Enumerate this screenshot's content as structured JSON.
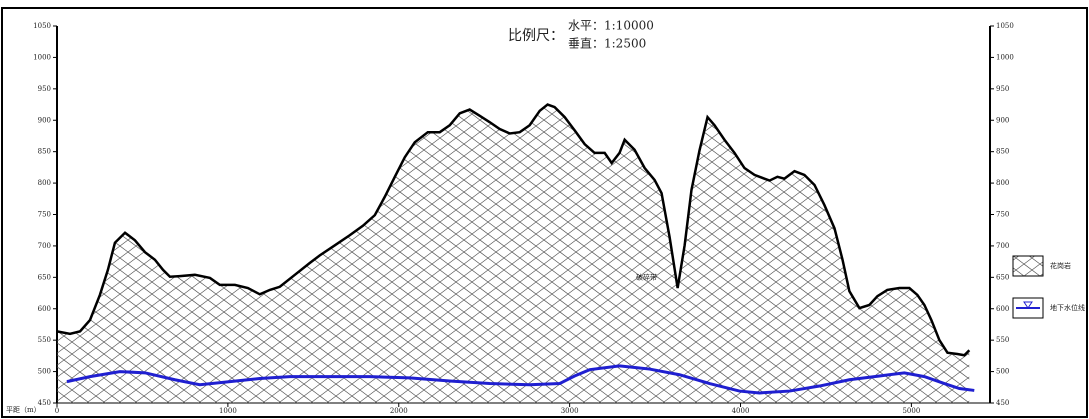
{
  "chart_data": {
    "type": "area",
    "title": "比例尺：",
    "scale_labels": [
      "水平：1:10000",
      "垂直：1:2500"
    ],
    "x_label": "平距（m）",
    "xlim": [
      0,
      5460
    ],
    "ylim": [
      450,
      1050
    ],
    "xticks": [
      0,
      1000,
      2000,
      3000,
      4000,
      5000
    ],
    "yticks": [
      450,
      500,
      550,
      600,
      650,
      700,
      750,
      800,
      850,
      900,
      950,
      1000,
      1050
    ],
    "annotations": [
      {
        "text": "破碎带",
        "x": 3450,
        "y": 650
      }
    ],
    "series": [
      {
        "name": "花岗岩",
        "type": "area",
        "color": "#000000",
        "x": [
          0,
          76,
          135,
          193,
          251,
          298,
          339,
          398,
          456,
          515,
          573,
          620,
          661,
          719,
          807,
          895,
          953,
          1041,
          1117,
          1187,
          1246,
          1304,
          1392,
          1480,
          1538,
          1626,
          1713,
          1790,
          1860,
          1918,
          1977,
          2035,
          2094,
          2170,
          2240,
          2298,
          2357,
          2415,
          2474,
          2532,
          2591,
          2649,
          2708,
          2766,
          2825,
          2871,
          2912,
          2971,
          3029,
          3088,
          3146,
          3205,
          3246,
          3292,
          3322,
          3380,
          3439,
          3497,
          3538,
          3585,
          3632,
          3673,
          3713,
          3760,
          3807,
          3848,
          3906,
          3965,
          4023,
          4082,
          4140,
          4170,
          4216,
          4257,
          4316,
          4374,
          4433,
          4491,
          4550,
          4597,
          4637,
          4696,
          4754,
          4801,
          4859,
          4930,
          4988,
          5035,
          5076,
          5117,
          5164,
          5211,
          5269,
          5310,
          5339
        ],
        "values": [
          564,
          560,
          564,
          582,
          622,
          662,
          705,
          721,
          709,
          690,
          678,
          662,
          651,
          652,
          654,
          649,
          638,
          638,
          633,
          623,
          630,
          635,
          654,
          673,
          685,
          701,
          717,
          732,
          749,
          778,
          810,
          841,
          865,
          881,
          881,
          892,
          911,
          917,
          907,
          897,
          886,
          879,
          881,
          892,
          915,
          925,
          921,
          905,
          884,
          862,
          848,
          848,
          832,
          848,
          869,
          853,
          824,
          805,
          784,
          714,
          633,
          701,
          789,
          852,
          905,
          892,
          869,
          848,
          824,
          813,
          807,
          804,
          810,
          807,
          819,
          813,
          797,
          765,
          728,
          678,
          628,
          601,
          606,
          620,
          630,
          633,
          633,
          622,
          606,
          582,
          550,
          530,
          528,
          526,
          534
        ]
      },
      {
        "name": "地下水位线",
        "type": "line",
        "color": "#1f1fd0",
        "x": [
          58,
          193,
          368,
          515,
          690,
          836,
          1012,
          1187,
          1363,
          1597,
          1830,
          2064,
          2298,
          2532,
          2766,
          2942,
          3029,
          3117,
          3292,
          3468,
          3643,
          3819,
          3994,
          4111,
          4287,
          4462,
          4637,
          4813,
          4959,
          5076,
          5193,
          5281,
          5368
        ],
        "values": [
          484,
          492,
          500,
          498,
          487,
          479,
          484,
          489,
          492,
          492,
          492,
          490,
          485,
          481,
          479,
          481,
          493,
          503,
          509,
          504,
          495,
          481,
          469,
          466,
          469,
          477,
          487,
          493,
          498,
          492,
          481,
          473,
          470
        ]
      }
    ]
  }
}
